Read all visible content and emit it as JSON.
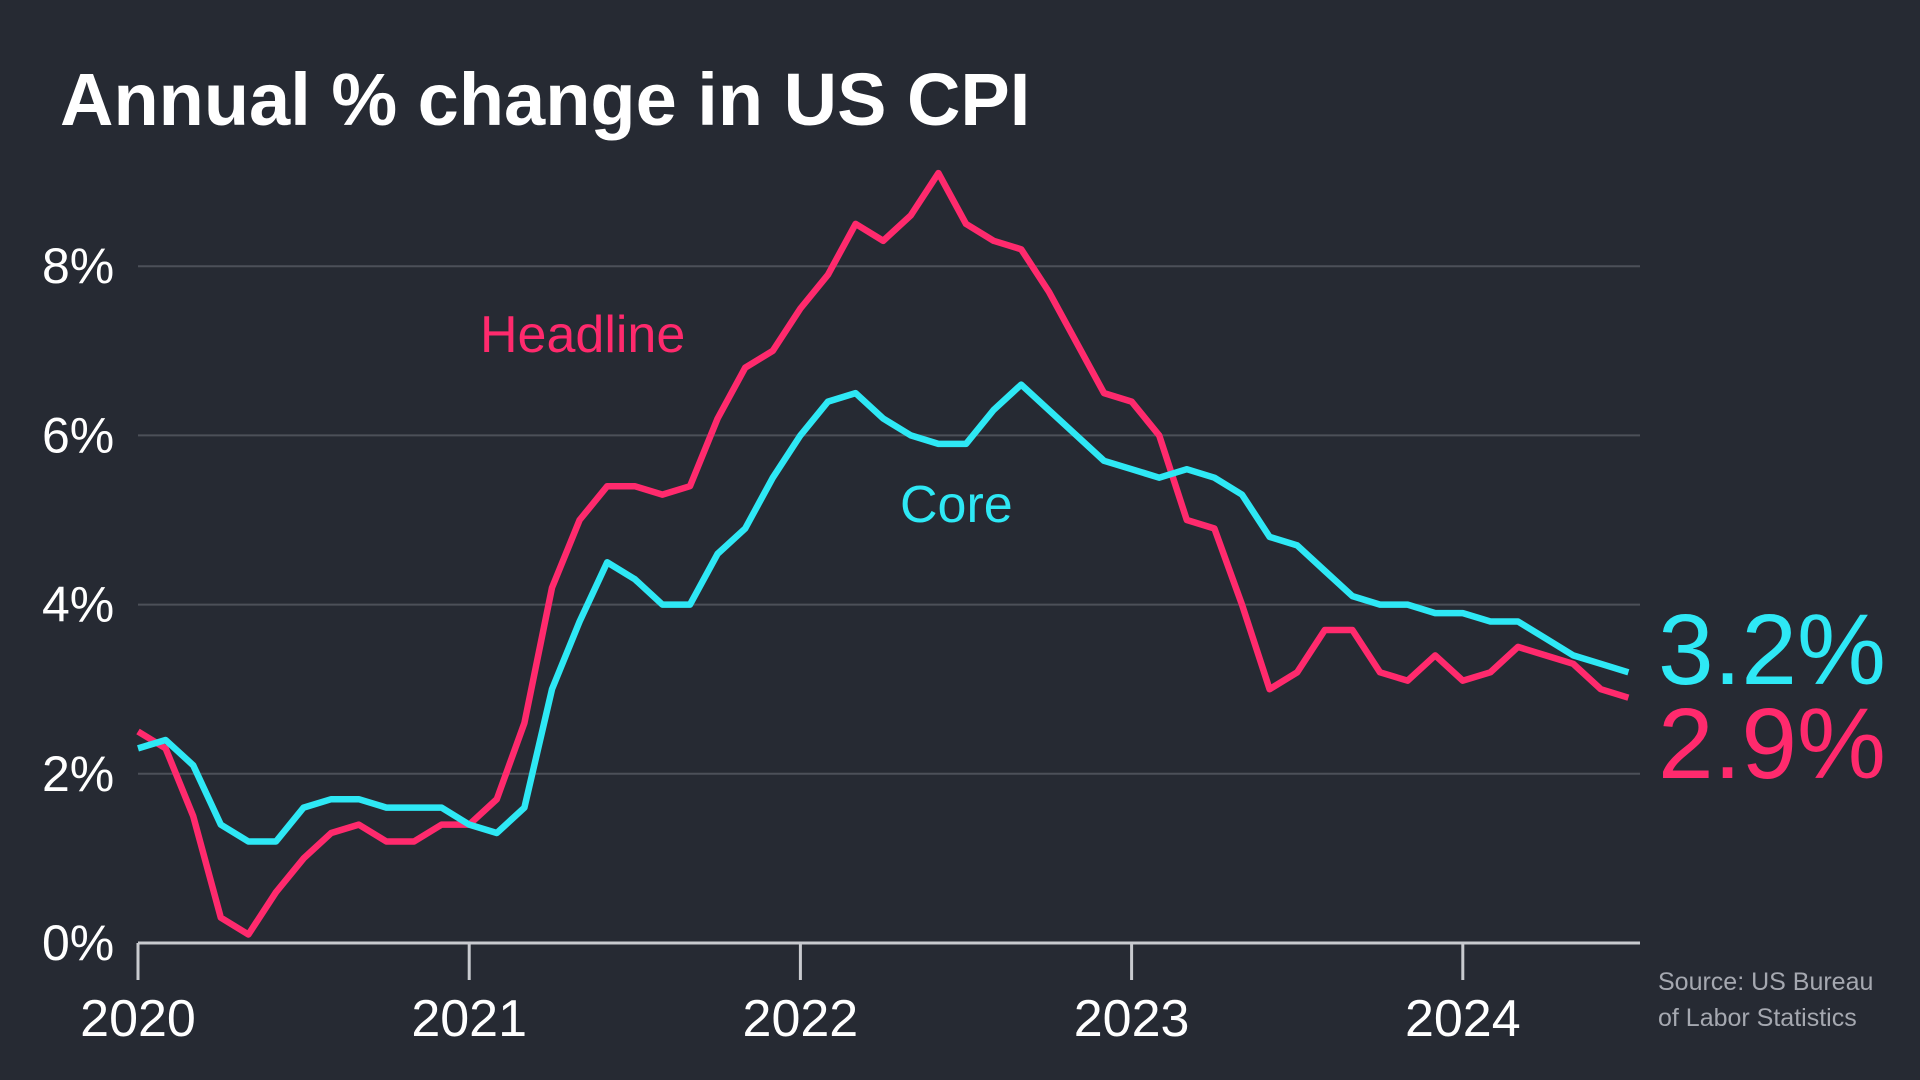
{
  "title": "Annual % change in US CPI",
  "source_lines": [
    "Source: US Bureau",
    "of Labor Statistics"
  ],
  "colors": {
    "background": "#262a33",
    "headline": "#ff2a6d",
    "core": "#2ee8f5",
    "grid": "#4c5059",
    "axis": "#c8cacf",
    "text": "#ffffff",
    "source": "#a5a8b0"
  },
  "chart_data": {
    "type": "line",
    "title": "Annual % change in US CPI",
    "xlabel": "",
    "ylabel": "",
    "x_start": "2020-01",
    "x_end": "2024-07",
    "x_ticks": [
      "2020",
      "2021",
      "2022",
      "2023",
      "2024"
    ],
    "y_ticks": [
      "0%",
      "2%",
      "4%",
      "6%",
      "8%"
    ],
    "ylim": [
      0,
      9.1
    ],
    "grid": true,
    "legend": "inline labels",
    "series": [
      {
        "name": "Headline",
        "color": "#ff2a6d",
        "end_label": "2.9%",
        "values": [
          2.5,
          2.3,
          1.5,
          0.3,
          0.1,
          0.6,
          1.0,
          1.3,
          1.4,
          1.2,
          1.2,
          1.4,
          1.4,
          1.7,
          2.6,
          4.2,
          5.0,
          5.4,
          5.4,
          5.3,
          5.4,
          6.2,
          6.8,
          7.0,
          7.5,
          7.9,
          8.5,
          8.3,
          8.6,
          9.1,
          8.5,
          8.3,
          8.2,
          7.7,
          7.1,
          6.5,
          6.4,
          6.0,
          5.0,
          4.9,
          4.0,
          3.0,
          3.2,
          3.7,
          3.7,
          3.2,
          3.1,
          3.4,
          3.1,
          3.2,
          3.5,
          3.4,
          3.3,
          3.0,
          2.9
        ]
      },
      {
        "name": "Core",
        "color": "#2ee8f5",
        "end_label": "3.2%",
        "values": [
          2.3,
          2.4,
          2.1,
          1.4,
          1.2,
          1.2,
          1.6,
          1.7,
          1.7,
          1.6,
          1.6,
          1.6,
          1.4,
          1.3,
          1.6,
          3.0,
          3.8,
          4.5,
          4.3,
          4.0,
          4.0,
          4.6,
          4.9,
          5.5,
          6.0,
          6.4,
          6.5,
          6.2,
          6.0,
          5.9,
          5.9,
          6.3,
          6.6,
          6.3,
          6.0,
          5.7,
          5.6,
          5.5,
          5.6,
          5.5,
          5.3,
          4.8,
          4.7,
          4.4,
          4.1,
          4.0,
          4.0,
          3.9,
          3.9,
          3.8,
          3.8,
          3.6,
          3.4,
          3.3,
          3.2
        ]
      }
    ]
  }
}
